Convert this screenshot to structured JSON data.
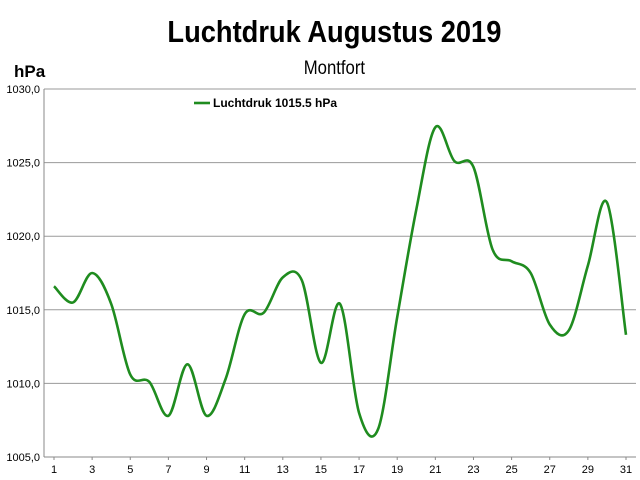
{
  "chart_data": {
    "type": "line",
    "title": "Luchtdruk Augustus 2019",
    "subtitle": "Montfort",
    "ylabel": "hPa",
    "xlabel": "",
    "ylim": [
      1005.0,
      1030.0
    ],
    "xlim": [
      1,
      31
    ],
    "yticks": [
      "1005,0",
      "1010,0",
      "1015,0",
      "1020,0",
      "1025,0",
      "1030,0"
    ],
    "xticks": [
      "1",
      "3",
      "5",
      "7",
      "9",
      "11",
      "13",
      "15",
      "17",
      "19",
      "21",
      "23",
      "25",
      "27",
      "29",
      "31"
    ],
    "grid": "horizontal",
    "legend_position": "top-left",
    "series": [
      {
        "name": "Luchtdruk 1015.5 hPa",
        "color": "#1f8c1f",
        "x": [
          1,
          2,
          3,
          4,
          5,
          6,
          7,
          8,
          9,
          10,
          11,
          12,
          13,
          14,
          15,
          16,
          17,
          18,
          19,
          20,
          21,
          22,
          23,
          24,
          25,
          26,
          27,
          28,
          29,
          30,
          31
        ],
        "values": [
          1016.6,
          1015.5,
          1017.5,
          1015.4,
          1010.6,
          1010.1,
          1007.8,
          1011.3,
          1007.8,
          1010.3,
          1014.7,
          1014.8,
          1017.2,
          1017.0,
          1011.4,
          1015.4,
          1008.0,
          1006.9,
          1014.5,
          1021.8,
          1027.4,
          1025.1,
          1024.7,
          1019.1,
          1018.3,
          1017.5,
          1014.0,
          1013.6,
          1018.0,
          1022.3,
          1013.3
        ]
      }
    ]
  }
}
